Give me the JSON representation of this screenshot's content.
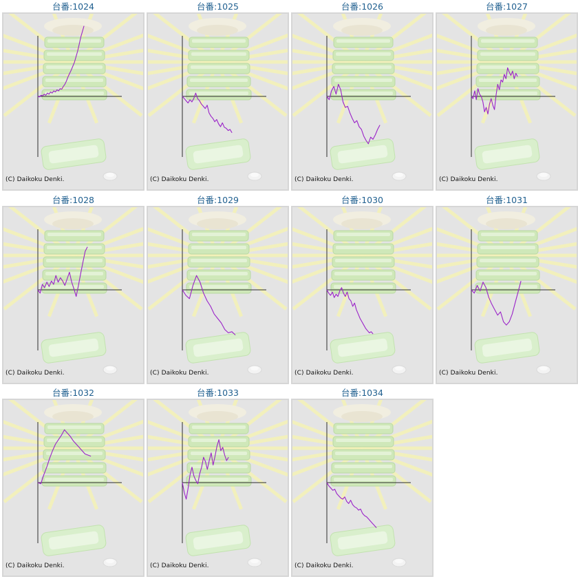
{
  "copyright": "(C) Daikoku Denki.",
  "colors": {
    "line": "#9a22c8",
    "axis": "#2b2b2b",
    "title": "#1f5f8f",
    "panel_bg": "#e4e4e4"
  },
  "machines": [
    {
      "label": "台番:1024",
      "series": [
        0,
        -1,
        2,
        1,
        4,
        2,
        6,
        4,
        8,
        6,
        10,
        8,
        12,
        10,
        14,
        13,
        18,
        22,
        28,
        36,
        42,
        48,
        55,
        62,
        72,
        82,
        95,
        108,
        118,
        128
      ]
    },
    {
      "label": "台番:1025",
      "series": [
        0,
        -4,
        -8,
        -12,
        -6,
        -10,
        -4,
        6,
        -4,
        -8,
        -14,
        -18,
        -22,
        -16,
        -30,
        -36,
        -40,
        -46,
        -42,
        -50,
        -55,
        -48,
        -56,
        -58,
        -62,
        -60,
        -66
      ]
    },
    {
      "label": "台番:1026",
      "series": [
        0,
        -6,
        10,
        18,
        4,
        22,
        12,
        -10,
        -20,
        -18,
        -30,
        -40,
        -48,
        -44,
        -55,
        -60,
        -72,
        -80,
        -86,
        -74,
        -78,
        -70,
        -60,
        -52
      ]
    },
    {
      "label": "台番:1027",
      "series": [
        0,
        -4,
        10,
        -6,
        14,
        4,
        0,
        -10,
        -28,
        -20,
        -32,
        -14,
        -4,
        -16,
        -24,
        2,
        22,
        12,
        30,
        26,
        40,
        32,
        52,
        44,
        38,
        46,
        32,
        42,
        36
      ]
    },
    {
      "label": "台番:1028",
      "series": [
        0,
        -6,
        10,
        4,
        14,
        6,
        16,
        10,
        26,
        14,
        22,
        16,
        8,
        20,
        32,
        14,
        2,
        -12,
        8,
        30,
        50,
        70,
        78
      ]
    },
    {
      "label": "台番:1029",
      "series": [
        0,
        -10,
        -16,
        8,
        26,
        14,
        -6,
        -20,
        -30,
        -44,
        -52,
        -60,
        -72,
        -78,
        -76,
        -82
      ]
    },
    {
      "label": "台番:1030",
      "series": [
        0,
        -6,
        -10,
        -4,
        -14,
        -8,
        -12,
        -2,
        4,
        -6,
        -12,
        -4,
        -16,
        -20,
        -30,
        -24,
        -36,
        -44,
        -52,
        -58,
        -64,
        -70,
        -74,
        -78,
        -76,
        -80
      ]
    },
    {
      "label": "台番:1031",
      "series": [
        0,
        -6,
        8,
        -2,
        14,
        4,
        -14,
        -26,
        -36,
        -46,
        -40,
        -58,
        -64,
        -58,
        -44,
        -24,
        -4,
        16
      ]
    },
    {
      "label": "台番:1032",
      "series": [
        0,
        -2,
        14,
        28,
        44,
        58,
        70,
        78,
        86,
        96,
        90,
        84,
        76,
        70,
        64,
        58,
        52,
        50,
        48
      ]
    },
    {
      "label": "台番:1033",
      "series": [
        0,
        -18,
        -30,
        -10,
        14,
        28,
        12,
        4,
        -2,
        16,
        28,
        46,
        38,
        24,
        40,
        54,
        32,
        48,
        66,
        78,
        58,
        64,
        50,
        40,
        46
      ]
    },
    {
      "label": "台番:1034",
      "series": [
        0,
        -6,
        -10,
        -14,
        -12,
        -20,
        -24,
        -28,
        -30,
        -26,
        -34,
        -38,
        -32,
        -40,
        -44,
        -46,
        -50,
        -48,
        -56,
        -60,
        -62,
        -66,
        -70,
        -74,
        -78,
        -82
      ]
    }
  ]
}
